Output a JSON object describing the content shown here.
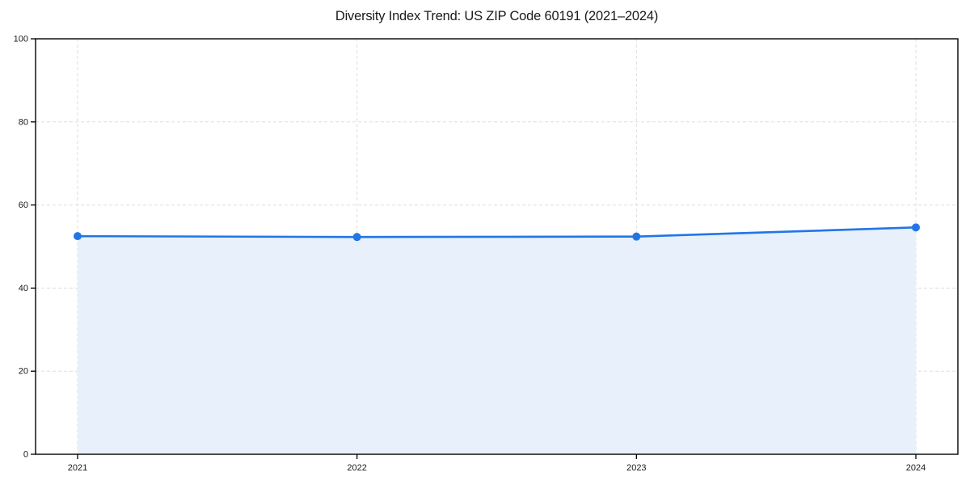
{
  "figure": {
    "title": "Diversity Index Trend: US ZIP Code 60191 (2021–2024)"
  },
  "chart_data": {
    "type": "area",
    "title": "Diversity Index Trend: US ZIP Code 60191 (2021–2024)",
    "categories": [
      "2021",
      "2022",
      "2023",
      "2024"
    ],
    "values": [
      52.5,
      52.3,
      52.4,
      54.6
    ],
    "xlabel": "",
    "ylabel": "",
    "ylim": [
      0,
      100
    ],
    "yticks": [
      0,
      20,
      40,
      60,
      80,
      100
    ],
    "grid": true,
    "grid_style": "dashed",
    "legend": "none",
    "colors": {
      "line": "#2176e6",
      "marker": "#2176e6",
      "fill": "#e8f0fc",
      "grid": "#dedede",
      "axis": "#000000",
      "text": "#1a1a1a",
      "background": "#ffffff"
    }
  }
}
